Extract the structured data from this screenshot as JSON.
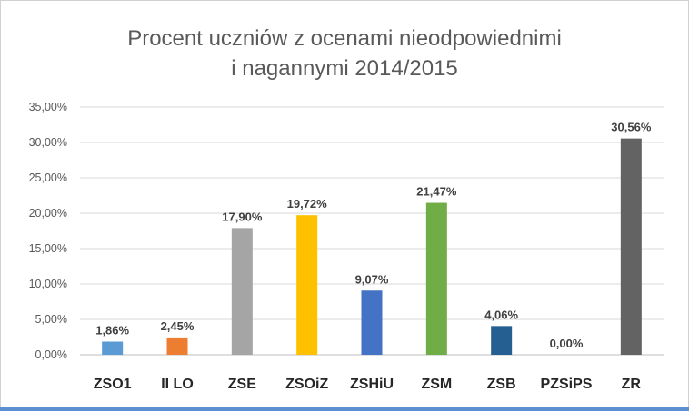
{
  "chart_data": {
    "type": "bar",
    "title_line1": "Procent uczniów z ocenami nieodpowiednimi",
    "title_line2": "i nagannymi 2014/2015",
    "categories": [
      "ZSO1",
      "II LO",
      "ZSE",
      "ZSOiZ",
      "ZSHiU",
      "ZSM",
      "ZSB",
      "PZSiPS",
      "ZR"
    ],
    "values": [
      1.86,
      2.45,
      17.9,
      19.72,
      9.07,
      21.47,
      4.06,
      0.0,
      30.56
    ],
    "data_labels": [
      "1,86%",
      "2,45%",
      "17,90%",
      "19,72%",
      "9,07%",
      "21,47%",
      "4,06%",
      "0,00%",
      "30,56%"
    ],
    "colors": [
      "#5b9bd5",
      "#ed7d31",
      "#a5a5a5",
      "#ffc000",
      "#4472c4",
      "#70ad47",
      "#255e91",
      "#9e480e",
      "#636363"
    ],
    "ylim": [
      0,
      35
    ],
    "yticks": [
      0,
      5,
      10,
      15,
      20,
      25,
      30,
      35
    ],
    "ytick_labels": [
      "0,00%",
      "5,00%",
      "10,00%",
      "15,00%",
      "20,00%",
      "25,00%",
      "30,00%",
      "35,00%"
    ],
    "grid": true,
    "legend": "none",
    "xlabel": "",
    "ylabel": ""
  }
}
